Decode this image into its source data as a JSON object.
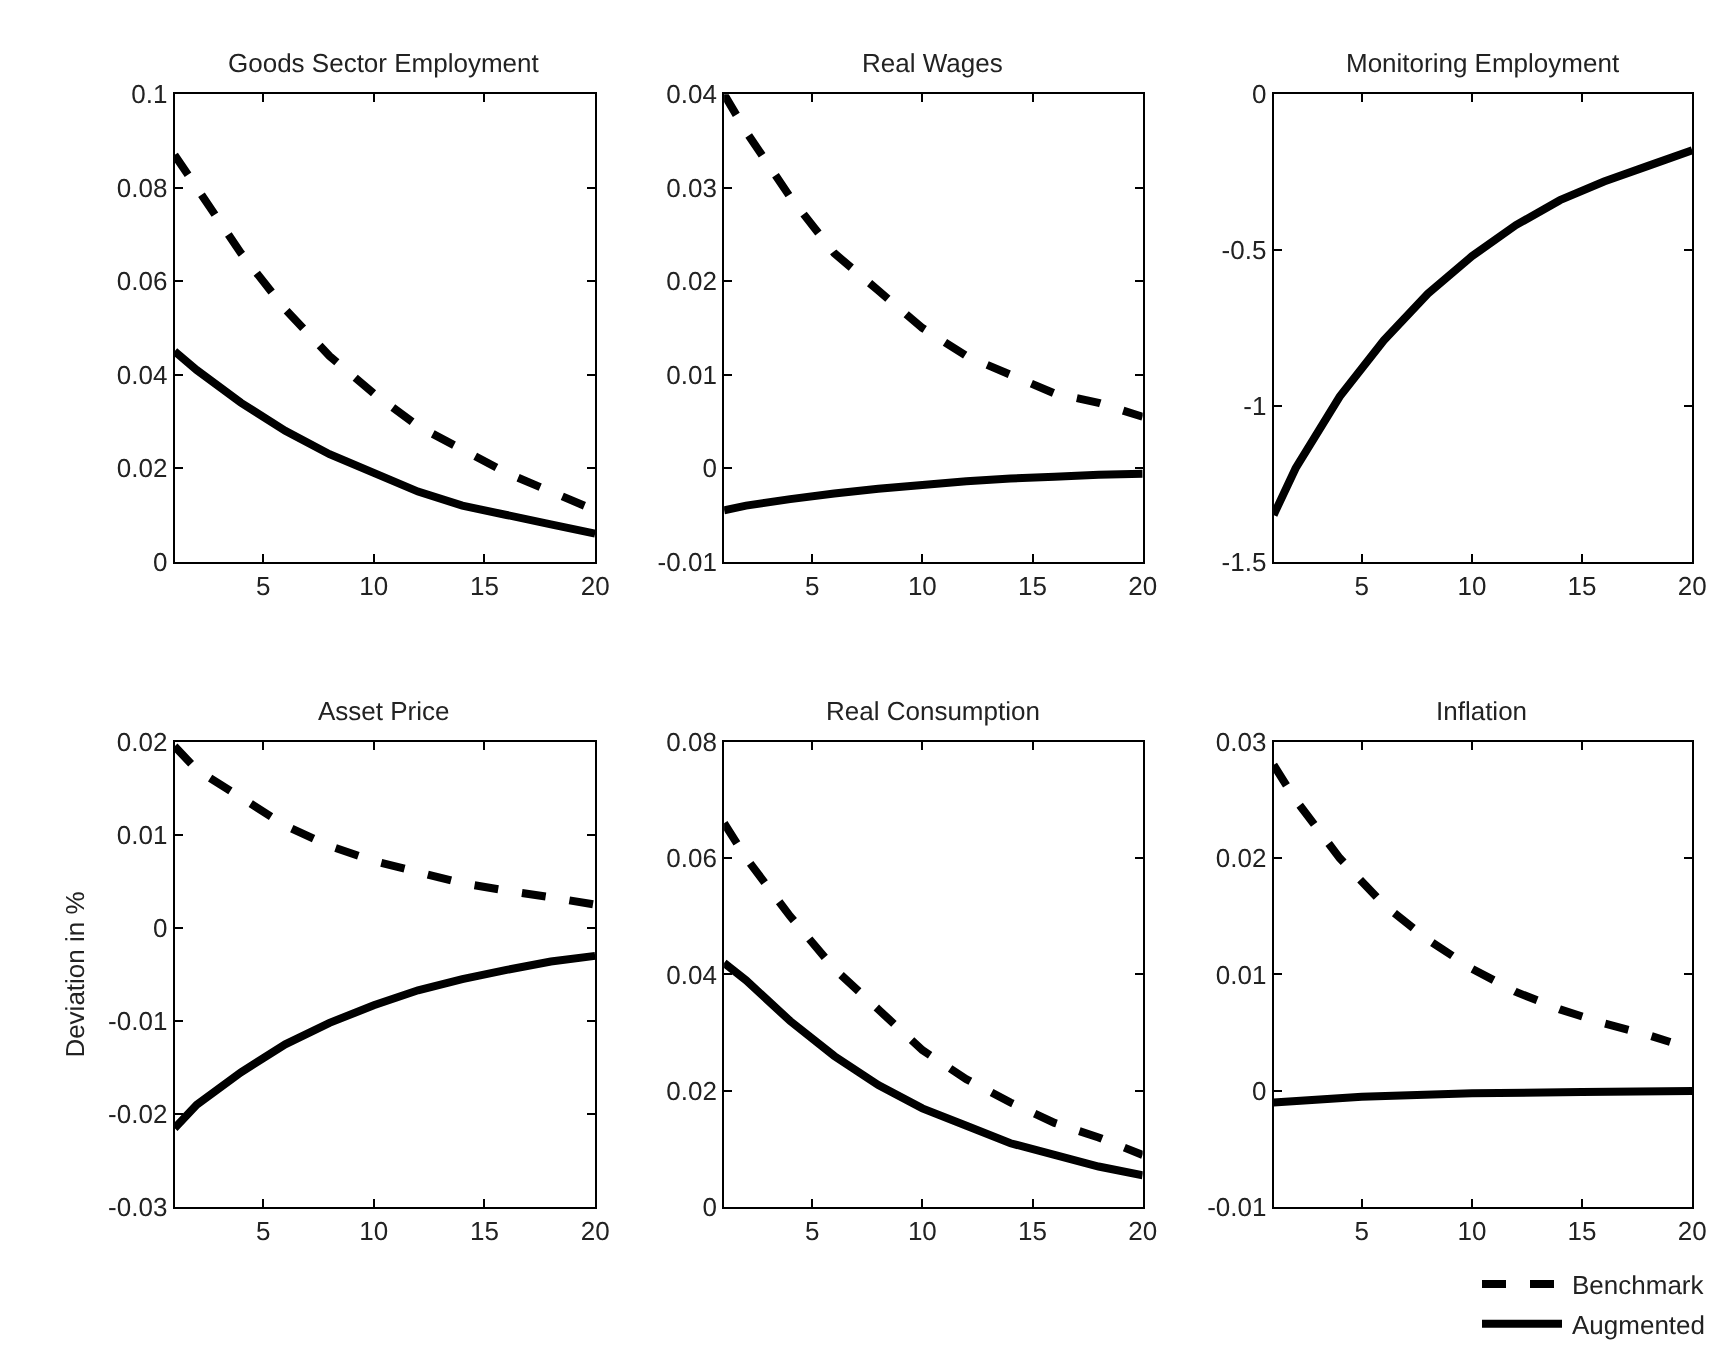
{
  "chart_data": [
    {
      "type": "line",
      "title": "Goods Sector Employment",
      "xlim": [
        1,
        20
      ],
      "xticks": [
        5,
        10,
        15,
        20
      ],
      "ylim": [
        0,
        0.1
      ],
      "yticks": [
        0,
        0.02,
        0.04,
        0.06,
        0.08,
        0.1
      ],
      "x": [
        1,
        2,
        4,
        6,
        8,
        10,
        12,
        14,
        16,
        18,
        20
      ],
      "series": [
        {
          "color": "#000000",
          "line_style": "dashed",
          "values": [
            0.087,
            0.08,
            0.066,
            0.054,
            0.044,
            0.036,
            0.029,
            0.024,
            0.019,
            0.015,
            0.011
          ]
        },
        {
          "color": "#000000",
          "line_style": "solid",
          "values": [
            0.045,
            0.041,
            0.034,
            0.028,
            0.023,
            0.019,
            0.015,
            0.012,
            0.01,
            0.008,
            0.006
          ]
        }
      ]
    },
    {
      "type": "line",
      "title": "Real Wages",
      "xlim": [
        1,
        20
      ],
      "xticks": [
        5,
        10,
        15,
        20
      ],
      "ylim": [
        -0.01,
        0.04
      ],
      "yticks": [
        -0.01,
        0,
        0.01,
        0.02,
        0.03,
        0.04
      ],
      "x": [
        1,
        2,
        4,
        6,
        8,
        10,
        12,
        14,
        16,
        18,
        20
      ],
      "series": [
        {
          "color": "#000000",
          "line_style": "dashed",
          "values": [
            0.04,
            0.036,
            0.029,
            0.023,
            0.019,
            0.015,
            0.012,
            0.01,
            0.008,
            0.007,
            0.0055
          ]
        },
        {
          "color": "#000000",
          "line_style": "solid",
          "values": [
            -0.0045,
            -0.004,
            -0.0033,
            -0.0027,
            -0.0022,
            -0.0018,
            -0.0014,
            -0.0011,
            -0.0009,
            -0.0007,
            -0.0006
          ]
        }
      ]
    },
    {
      "type": "line",
      "title": "Monitoring Employment",
      "xlim": [
        1,
        20
      ],
      "xticks": [
        5,
        10,
        15,
        20
      ],
      "ylim": [
        -1.5,
        0
      ],
      "yticks": [
        -1.5,
        -1,
        -0.5,
        0
      ],
      "x": [
        1,
        2,
        4,
        6,
        8,
        10,
        12,
        14,
        16,
        18,
        20
      ],
      "series": [
        {
          "color": "#000000",
          "line_style": "solid",
          "values": [
            -1.35,
            -1.2,
            -0.97,
            -0.79,
            -0.64,
            -0.52,
            -0.42,
            -0.34,
            -0.28,
            -0.23,
            -0.18
          ]
        }
      ]
    },
    {
      "type": "line",
      "title": "Asset Price",
      "ylabel": "Deviation in %",
      "xlim": [
        1,
        20
      ],
      "xticks": [
        5,
        10,
        15,
        20
      ],
      "ylim": [
        -0.03,
        0.02
      ],
      "yticks": [
        -0.03,
        -0.02,
        -0.01,
        0,
        0.01,
        0.02
      ],
      "x": [
        1,
        2,
        4,
        6,
        8,
        10,
        12,
        14,
        16,
        18,
        20
      ],
      "series": [
        {
          "color": "#000000",
          "line_style": "dashed",
          "values": [
            0.0195,
            0.017,
            0.014,
            0.011,
            0.0088,
            0.0072,
            0.006,
            0.0048,
            0.004,
            0.0033,
            0.0025
          ]
        },
        {
          "color": "#000000",
          "line_style": "solid",
          "values": [
            -0.0215,
            -0.019,
            -0.0155,
            -0.0125,
            -0.0102,
            -0.0083,
            -0.0067,
            -0.0055,
            -0.0045,
            -0.0036,
            -0.003
          ]
        }
      ]
    },
    {
      "type": "line",
      "title": "Real Consumption",
      "xlim": [
        1,
        20
      ],
      "xticks": [
        5,
        10,
        15,
        20
      ],
      "ylim": [
        0,
        0.08
      ],
      "yticks": [
        0,
        0.02,
        0.04,
        0.06,
        0.08
      ],
      "x": [
        1,
        2,
        4,
        6,
        8,
        10,
        12,
        14,
        16,
        18,
        20
      ],
      "series": [
        {
          "color": "#000000",
          "line_style": "dashed",
          "values": [
            0.066,
            0.06,
            0.05,
            0.041,
            0.034,
            0.027,
            0.022,
            0.018,
            0.0145,
            0.012,
            0.009
          ]
        },
        {
          "color": "#000000",
          "line_style": "solid",
          "values": [
            0.042,
            0.039,
            0.032,
            0.026,
            0.021,
            0.017,
            0.014,
            0.011,
            0.009,
            0.007,
            0.0055
          ]
        }
      ]
    },
    {
      "type": "line",
      "title": "Inflation",
      "xlim": [
        1,
        20
      ],
      "xticks": [
        5,
        10,
        15,
        20
      ],
      "ylim": [
        -0.01,
        0.03
      ],
      "yticks": [
        -0.01,
        0,
        0.01,
        0.02,
        0.03
      ],
      "legend": "bottom right",
      "series": [
        {
          "name": "Benchmark",
          "color": "#000000",
          "line_style": "dashed",
          "x": [
            1,
            2,
            4,
            6,
            8,
            10,
            12,
            14,
            16,
            18,
            19
          ],
          "values": [
            0.028,
            0.025,
            0.02,
            0.016,
            0.013,
            0.0105,
            0.0085,
            0.007,
            0.0058,
            0.0048,
            0.0042
          ]
        },
        {
          "name": "Augmented",
          "color": "#000000",
          "line_style": "solid",
          "x": [
            1,
            5,
            10,
            15,
            20
          ],
          "values": [
            -0.001,
            -0.0005,
            -0.0002,
            -0.0001,
            0
          ]
        }
      ]
    }
  ]
}
